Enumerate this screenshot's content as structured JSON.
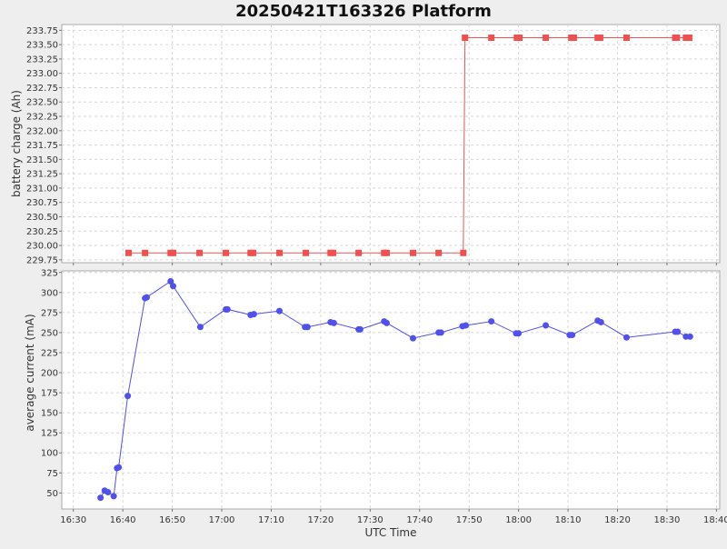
{
  "chart_data": {
    "type": "line",
    "title": "20250421T163326 Platform",
    "xlabel": "UTC Time",
    "x_ticks": [
      "16:30",
      "16:40",
      "16:50",
      "17:00",
      "17:10",
      "17:20",
      "17:30",
      "17:40",
      "17:50",
      "18:00",
      "18:10",
      "18:20",
      "18:30",
      "18:40"
    ],
    "xlim": [
      "16:27:40",
      "18:40:40"
    ],
    "grid": true,
    "colors": {
      "charge": "#f05050",
      "current": "#5050f0",
      "plot_bg": "#ffffff",
      "figure_bg": "#eeeeee"
    },
    "panels": [
      {
        "ylabel": "battery charge (Ah)",
        "ylim": [
          229.7,
          233.85
        ],
        "y_ticks": [
          "229.75",
          "230.00",
          "230.25",
          "230.50",
          "230.75",
          "231.00",
          "231.25",
          "231.50",
          "231.75",
          "232.00",
          "232.25",
          "232.50",
          "232.75",
          "233.00",
          "233.25",
          "233.50",
          "233.75"
        ],
        "series": [
          {
            "marker": "square",
            "step": true,
            "points": [
              [
                "16:41:10",
                229.87
              ],
              [
                "16:44:30",
                229.87
              ],
              [
                "16:49:40",
                229.87
              ],
              [
                "16:50:10",
                229.87
              ],
              [
                "16:55:30",
                229.87
              ],
              [
                "17:00:50",
                229.87
              ],
              [
                "17:05:50",
                229.87
              ],
              [
                "17:06:20",
                229.87
              ],
              [
                "17:11:40",
                229.87
              ],
              [
                "17:17:00",
                229.87
              ],
              [
                "17:22:00",
                229.87
              ],
              [
                "17:22:30",
                229.87
              ],
              [
                "17:27:40",
                229.87
              ],
              [
                "17:32:50",
                229.87
              ],
              [
                "17:33:20",
                229.87
              ],
              [
                "17:38:40",
                229.87
              ],
              [
                "17:43:50",
                229.87
              ],
              [
                "17:48:50",
                229.87
              ],
              [
                "17:49:10",
                233.62
              ],
              [
                "17:54:30",
                233.62
              ],
              [
                "17:59:40",
                233.62
              ],
              [
                "18:00:10",
                233.62
              ],
              [
                "18:05:30",
                233.62
              ],
              [
                "18:10:40",
                233.62
              ],
              [
                "18:11:10",
                233.62
              ],
              [
                "18:16:00",
                233.62
              ],
              [
                "18:16:30",
                233.62
              ],
              [
                "18:21:50",
                233.62
              ],
              [
                "18:31:40",
                233.62
              ],
              [
                "18:32:00",
                233.62
              ],
              [
                "18:33:50",
                233.62
              ],
              [
                "18:34:30",
                233.62
              ]
            ]
          }
        ]
      },
      {
        "ylabel": "average current (mA)",
        "ylim": [
          30,
          327
        ],
        "y_ticks": [
          "50",
          "75",
          "100",
          "125",
          "150",
          "175",
          "200",
          "225",
          "250",
          "275",
          "300",
          "325"
        ],
        "series": [
          {
            "marker": "circle",
            "step": false,
            "points": [
              [
                "16:35:30",
                44
              ],
              [
                "16:36:20",
                53
              ],
              [
                "16:37:00",
                51
              ],
              [
                "16:38:10",
                46
              ],
              [
                "16:38:50",
                81
              ],
              [
                "16:39:10",
                82
              ],
              [
                "16:41:00",
                171
              ],
              [
                "16:44:30",
                293
              ],
              [
                "16:44:50",
                294
              ],
              [
                "16:49:40",
                314
              ],
              [
                "16:50:10",
                308
              ],
              [
                "16:55:40",
                257
              ],
              [
                "17:00:50",
                279
              ],
              [
                "17:01:10",
                279
              ],
              [
                "17:05:50",
                272
              ],
              [
                "17:06:30",
                273
              ],
              [
                "17:11:40",
                277
              ],
              [
                "17:16:50",
                257
              ],
              [
                "17:17:20",
                257
              ],
              [
                "17:22:00",
                263
              ],
              [
                "17:22:40",
                262
              ],
              [
                "17:27:40",
                254
              ],
              [
                "17:28:00",
                254
              ],
              [
                "17:32:50",
                264
              ],
              [
                "17:33:20",
                262
              ],
              [
                "17:38:40",
                243
              ],
              [
                "17:43:50",
                250
              ],
              [
                "17:44:20",
                250
              ],
              [
                "17:48:40",
                258
              ],
              [
                "17:49:20",
                259
              ],
              [
                "17:54:30",
                264
              ],
              [
                "17:59:30",
                249
              ],
              [
                "18:00:00",
                249
              ],
              [
                "18:05:30",
                259
              ],
              [
                "18:10:20",
                247
              ],
              [
                "18:10:50",
                247
              ],
              [
                "18:16:00",
                265
              ],
              [
                "18:16:40",
                263
              ],
              [
                "18:21:50",
                244
              ],
              [
                "18:31:40",
                251
              ],
              [
                "18:32:10",
                251
              ],
              [
                "18:33:50",
                245
              ],
              [
                "18:34:40",
                245
              ]
            ]
          }
        ]
      }
    ]
  }
}
